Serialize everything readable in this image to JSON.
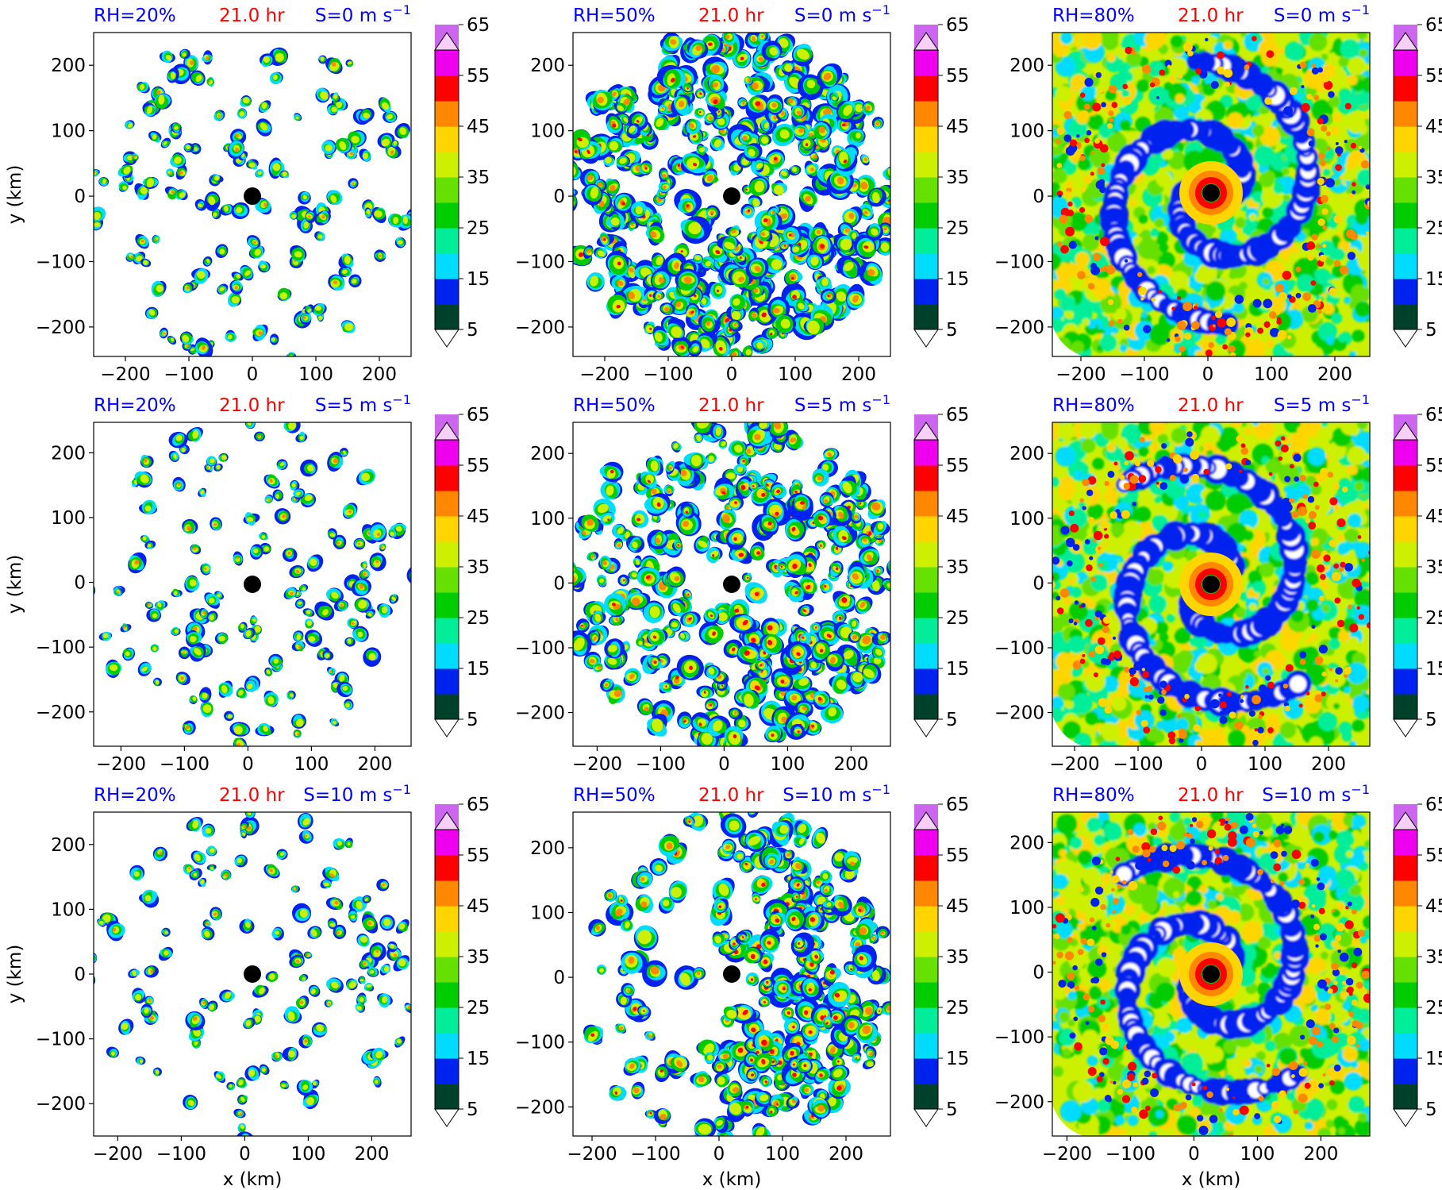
{
  "figure": {
    "time_label": "21.0 hr",
    "xlabel": "x (km)",
    "ylabel": "y (km)",
    "unit_text": "m s",
    "unit_exp": "−1",
    "colors": {
      "title_blue": "#0000ff",
      "title_red": "#ff0000"
    }
  },
  "colorbar": {
    "levels": [
      5,
      10,
      15,
      20,
      25,
      30,
      35,
      40,
      45,
      50,
      55,
      60,
      65,
      70
    ],
    "tick_labels": [
      "5",
      "15",
      "25",
      "35",
      "45",
      "55",
      "65"
    ],
    "colors": [
      "#00412b",
      "#0022ee",
      "#00dcff",
      "#00ee99",
      "#00cc00",
      "#66e000",
      "#ccf000",
      "#ffd500",
      "#ff8800",
      "#ff0000",
      "#ee00ee",
      "#cc66ee",
      "#f6d0f6"
    ],
    "extend": "both"
  },
  "chart_data": [
    {
      "type": "heatmap",
      "rh": "RH=20%",
      "shear": "S=0",
      "rh_value": 20,
      "shear_value": 0,
      "center": [
        0,
        0
      ],
      "xlim": [
        -250,
        250
      ],
      "ylim": [
        -245,
        250
      ],
      "xticks": [
        "−200",
        "−100",
        "0",
        "100",
        "200"
      ],
      "yticks": [
        "−200",
        "−100",
        "0",
        "100",
        "200"
      ]
    },
    {
      "type": "heatmap",
      "rh": "RH=50%",
      "shear": "S=0",
      "rh_value": 50,
      "shear_value": 0,
      "center": [
        0,
        0
      ],
      "xlim": [
        -250,
        250
      ],
      "ylim": [
        -245,
        250
      ],
      "xticks": [
        "−200",
        "−100",
        "0",
        "100",
        "200"
      ],
      "yticks": [
        "−200",
        "−100",
        "0",
        "100",
        "200"
      ]
    },
    {
      "type": "heatmap",
      "rh": "RH=80%",
      "shear": "S=0",
      "rh_value": 80,
      "shear_value": 0,
      "center": [
        5,
        5
      ],
      "xlim": [
        -245,
        255
      ],
      "ylim": [
        -245,
        250
      ],
      "xticks": [
        "−200",
        "−100",
        "0",
        "100",
        "200"
      ],
      "yticks": [
        "−200",
        "−100",
        "0",
        "100",
        "200"
      ]
    },
    {
      "type": "heatmap",
      "rh": "RH=20%",
      "shear": "S=5",
      "rh_value": 20,
      "shear_value": 5,
      "center": [
        7,
        -3
      ],
      "xlim": [
        -243,
        257
      ],
      "ylim": [
        -253,
        247
      ],
      "xticks": [
        "−200",
        "−100",
        "0",
        "100",
        "200"
      ],
      "yticks": [
        "−200",
        "−100",
        "0",
        "100",
        "200"
      ]
    },
    {
      "type": "heatmap",
      "rh": "RH=50%",
      "shear": "S=5",
      "rh_value": 50,
      "shear_value": 5,
      "center": [
        12,
        -2
      ],
      "xlim": [
        -238,
        262
      ],
      "ylim": [
        -252,
        248
      ],
      "xticks": [
        "−200",
        "−100",
        "0",
        "100",
        "200"
      ],
      "yticks": [
        "−200",
        "−100",
        "0",
        "100",
        "200"
      ]
    },
    {
      "type": "heatmap",
      "rh": "RH=80%",
      "shear": "S=5",
      "rh_value": 80,
      "shear_value": 5,
      "center": [
        15,
        -2
      ],
      "xlim": [
        -235,
        265
      ],
      "ylim": [
        -252,
        248
      ],
      "xticks": [
        "−200",
        "−100",
        "0",
        "100",
        "200"
      ],
      "yticks": [
        "−200",
        "−100",
        "0",
        "100",
        "200"
      ]
    },
    {
      "type": "heatmap",
      "rh": "RH=20%",
      "shear": "S=10",
      "rh_value": 20,
      "shear_value": 10,
      "center": [
        12,
        0
      ],
      "xlim": [
        -238,
        262
      ],
      "ylim": [
        -250,
        250
      ],
      "xticks": [
        "−200",
        "−100",
        "0",
        "100",
        "200"
      ],
      "yticks": [
        "−200",
        "−100",
        "0",
        "100",
        "200"
      ]
    },
    {
      "type": "heatmap",
      "rh": "RH=50%",
      "shear": "S=10",
      "rh_value": 50,
      "shear_value": 10,
      "center": [
        20,
        5
      ],
      "xlim": [
        -230,
        270
      ],
      "ylim": [
        -245,
        255
      ],
      "xticks": [
        "−200",
        "−100",
        "0",
        "100",
        "200"
      ],
      "yticks": [
        "−200",
        "−100",
        "0",
        "100",
        "200"
      ]
    },
    {
      "type": "heatmap",
      "rh": "RH=80%",
      "shear": "S=10",
      "rh_value": 80,
      "shear_value": 10,
      "center": [
        27,
        -3
      ],
      "xlim": [
        -223,
        277
      ],
      "ylim": [
        -253,
        247
      ],
      "xticks": [
        "−200",
        "−100",
        "0",
        "100",
        "200"
      ],
      "yticks": [
        "−200",
        "−100",
        "0",
        "100",
        "200"
      ]
    }
  ]
}
